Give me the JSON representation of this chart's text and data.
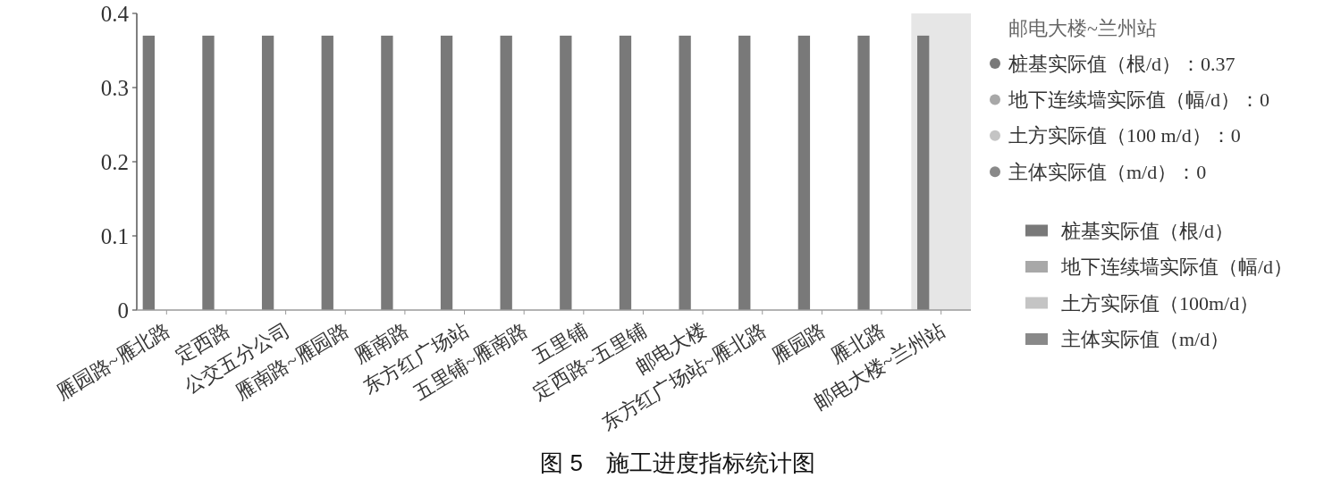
{
  "chart_data": {
    "type": "bar",
    "title": "图 5　施工进度指标统计图",
    "categories": [
      "雁园路~雁北路",
      "定西路",
      "公交五分公司",
      "雁南路~雁园路",
      "雁南路",
      "东方红广场站",
      "五里铺~雁南路",
      "五里铺",
      "定西路~五里铺",
      "邮电大楼",
      "东方红广场站~雁北路",
      "雁园路",
      "雁北路",
      "邮电大楼~兰州站"
    ],
    "series": [
      {
        "name": "桩基实际值（根/d）",
        "color": "#797979",
        "values": [
          0.37,
          0.37,
          0.37,
          0.37,
          0.37,
          0.37,
          0.37,
          0.37,
          0.37,
          0.37,
          0.37,
          0.37,
          0.37,
          0.37
        ]
      },
      {
        "name": "地下连续墙实际值（幅/d）",
        "color": "#a8a8a8",
        "values": [
          0,
          0,
          0,
          0,
          0,
          0,
          0,
          0,
          0,
          0,
          0,
          0,
          0,
          0
        ]
      },
      {
        "name": "土方实际值（100m/d）",
        "color": "#c4c4c4",
        "values": [
          0,
          0,
          0,
          0,
          0,
          0,
          0,
          0,
          0,
          0,
          0,
          0,
          0,
          0
        ]
      },
      {
        "name": "主体实际值（m/d）",
        "color": "#898989",
        "values": [
          0,
          0,
          0,
          0,
          0,
          0,
          0,
          0,
          0,
          0,
          0,
          0,
          0,
          0
        ]
      }
    ],
    "ylim": [
      0,
      0.4
    ],
    "yticks": [
      0,
      0.1,
      0.2,
      0.3,
      0.4
    ],
    "legend": "right",
    "bands": [
      {
        "axis": "x",
        "from": "邮电大楼~兰州站",
        "to": "邮电大楼~兰州站",
        "color": "#e6e6e6"
      }
    ],
    "annotations": [
      "邮电大楼~兰州站",
      "桩基实际值（根/d）：0.37",
      "地下连续墙实际值（幅/d）：0",
      "土方实际值（100 m/d）：0",
      "主体实际值（m/d）：0"
    ]
  }
}
